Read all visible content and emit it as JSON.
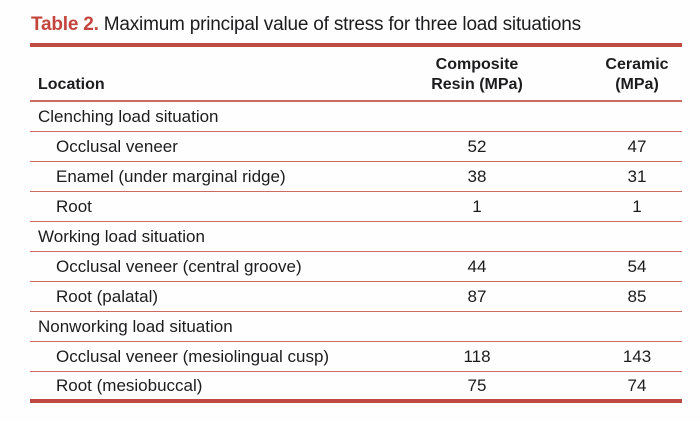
{
  "caption": {
    "label": "Table 2.",
    "title": "Maximum principal value of stress for three load situations"
  },
  "table": {
    "header": {
      "location": "Location",
      "composite_line1": "Composite",
      "composite_line2": "Resin (MPa)",
      "ceramic_line1": "Ceramic",
      "ceramic_line2": "(MPa)"
    },
    "sections": [
      {
        "name": "Clenching load situation",
        "rows": [
          [
            "Occlusal veneer",
            "52",
            "47"
          ],
          [
            "Enamel (under marginal ridge)",
            "38",
            "31"
          ],
          [
            "Root",
            "1",
            "1"
          ]
        ]
      },
      {
        "name": "Working load situation",
        "rows": [
          [
            "Occlusal veneer (central groove)",
            "44",
            "54"
          ],
          [
            "Root (palatal)",
            "87",
            "85"
          ]
        ]
      },
      {
        "name": "Nonworking load situation",
        "rows": [
          [
            "Occlusal veneer (mesiolingual cusp)",
            "118",
            "143"
          ],
          [
            "Root (mesiobuccal)",
            "75",
            "74"
          ]
        ]
      }
    ]
  },
  "colors": {
    "accent_red": "#C4453D",
    "thick_rule": "#BF4A42",
    "thin_rule": "#CD6A62",
    "text": "#1c1c1e",
    "background": "#fefefe"
  }
}
